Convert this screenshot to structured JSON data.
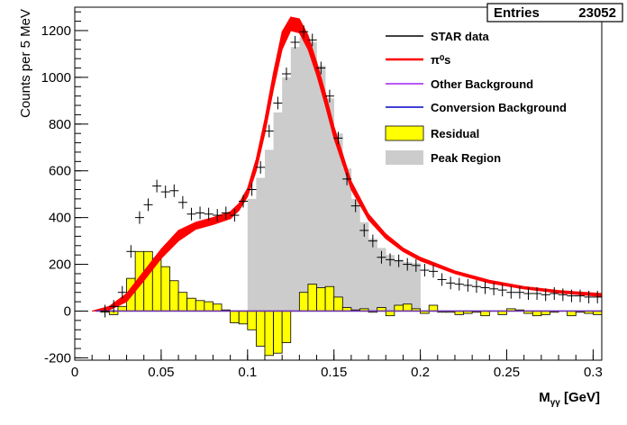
{
  "stats_box": {
    "label": "Entries",
    "value": "23052"
  },
  "chart_data": {
    "type": "line",
    "xlabel": "M",
    "xlabel_sub": "γγ",
    "xlabel_unit": " [GeV]",
    "ylabel": "Counts per 5 MeV",
    "xlim": [
      0,
      0.305
    ],
    "ylim": [
      -210,
      1300
    ],
    "x_ticks": [
      0,
      0.05,
      0.1,
      0.15,
      0.2,
      0.25,
      0.3
    ],
    "x_tick_labels": [
      "0",
      "0.05",
      "0.1",
      "0.15",
      "0.2",
      "0.25",
      "0.3"
    ],
    "y_ticks": [
      -200,
      0,
      200,
      400,
      600,
      800,
      1000,
      1200
    ],
    "y_tick_labels": [
      "-200",
      "0",
      "200",
      "400",
      "600",
      "800",
      "1000",
      "1200"
    ],
    "legend": [
      {
        "label": "STAR data",
        "style": "line",
        "color": "#000000"
      },
      {
        "label": "π⁰s",
        "style": "line",
        "color": "#ff0000"
      },
      {
        "label": "Other Background",
        "style": "line",
        "color": "#a020f0"
      },
      {
        "label": "Conversion Background",
        "style": "line",
        "color": "#0000cc"
      },
      {
        "label": "Residual",
        "style": "box",
        "color": "#ffff00"
      },
      {
        "label": "Peak Region",
        "style": "box",
        "color": "#cccccc"
      }
    ],
    "peak_region": {
      "bin_width": 0.005,
      "bins": [
        [
          0.1,
          480
        ],
        [
          0.105,
          570
        ],
        [
          0.11,
          690
        ],
        [
          0.115,
          850
        ],
        [
          0.12,
          1000
        ],
        [
          0.125,
          1130
        ],
        [
          0.13,
          1170
        ],
        [
          0.135,
          1150
        ],
        [
          0.14,
          1050
        ],
        [
          0.145,
          910
        ],
        [
          0.15,
          760
        ],
        [
          0.155,
          610
        ],
        [
          0.16,
          480
        ],
        [
          0.165,
          380
        ],
        [
          0.17,
          310
        ],
        [
          0.175,
          270
        ],
        [
          0.18,
          240
        ],
        [
          0.185,
          220
        ],
        [
          0.19,
          210
        ],
        [
          0.195,
          205
        ]
      ]
    },
    "residual": {
      "bin_width": 0.005,
      "bins": [
        [
          0.01,
          0
        ],
        [
          0.015,
          -5
        ],
        [
          0.02,
          -15
        ],
        [
          0.025,
          20
        ],
        [
          0.03,
          140
        ],
        [
          0.035,
          255
        ],
        [
          0.04,
          255
        ],
        [
          0.045,
          225
        ],
        [
          0.05,
          190
        ],
        [
          0.055,
          130
        ],
        [
          0.06,
          80
        ],
        [
          0.065,
          55
        ],
        [
          0.07,
          45
        ],
        [
          0.075,
          40
        ],
        [
          0.08,
          30
        ],
        [
          0.085,
          5
        ],
        [
          0.09,
          -50
        ],
        [
          0.095,
          -55
        ],
        [
          0.1,
          -80
        ],
        [
          0.105,
          -150
        ],
        [
          0.11,
          -190
        ],
        [
          0.115,
          -180
        ],
        [
          0.12,
          -135
        ],
        [
          0.125,
          0
        ],
        [
          0.13,
          80
        ],
        [
          0.135,
          115
        ],
        [
          0.14,
          100
        ],
        [
          0.145,
          105
        ],
        [
          0.15,
          60
        ],
        [
          0.155,
          15
        ],
        [
          0.16,
          5
        ],
        [
          0.165,
          10
        ],
        [
          0.17,
          -5
        ],
        [
          0.175,
          15
        ],
        [
          0.18,
          -20
        ],
        [
          0.185,
          25
        ],
        [
          0.19,
          30
        ],
        [
          0.195,
          10
        ],
        [
          0.2,
          -10
        ],
        [
          0.205,
          25
        ],
        [
          0.21,
          -5
        ],
        [
          0.215,
          -5
        ],
        [
          0.22,
          -15
        ],
        [
          0.225,
          -10
        ],
        [
          0.23,
          -5
        ],
        [
          0.235,
          -20
        ],
        [
          0.24,
          0
        ],
        [
          0.245,
          -15
        ],
        [
          0.25,
          10
        ],
        [
          0.255,
          5
        ],
        [
          0.26,
          -10
        ],
        [
          0.265,
          -20
        ],
        [
          0.27,
          -15
        ],
        [
          0.275,
          -5
        ],
        [
          0.28,
          0
        ],
        [
          0.285,
          -20
        ],
        [
          0.29,
          -5
        ],
        [
          0.295,
          -10
        ],
        [
          0.3,
          -15
        ]
      ]
    },
    "star_data": {
      "x": [
        0.0175,
        0.0225,
        0.0275,
        0.0325,
        0.0375,
        0.0425,
        0.0475,
        0.0525,
        0.0575,
        0.0625,
        0.0675,
        0.0725,
        0.0775,
        0.0825,
        0.0875,
        0.0925,
        0.0975,
        0.1025,
        0.1075,
        0.1125,
        0.1175,
        0.1225,
        0.1275,
        0.1325,
        0.1375,
        0.1425,
        0.1475,
        0.1525,
        0.1575,
        0.1625,
        0.1675,
        0.1725,
        0.1775,
        0.1825,
        0.1875,
        0.1925,
        0.1975,
        0.2025,
        0.2075,
        0.2125,
        0.2175,
        0.2225,
        0.2275,
        0.2325,
        0.2375,
        0.2425,
        0.2475,
        0.2525,
        0.2575,
        0.2625,
        0.2675,
        0.2725,
        0.2775,
        0.2825,
        0.2875,
        0.2925,
        0.2975,
        0.3025
      ],
      "y": [
        0,
        20,
        80,
        255,
        400,
        455,
        535,
        510,
        515,
        465,
        415,
        420,
        415,
        410,
        420,
        410,
        470,
        520,
        615,
        770,
        890,
        1015,
        1150,
        1195,
        1160,
        1040,
        920,
        740,
        565,
        450,
        345,
        300,
        230,
        220,
        215,
        200,
        195,
        175,
        170,
        135,
        120,
        115,
        110,
        105,
        100,
        95,
        90,
        80,
        80,
        75,
        75,
        70,
        75,
        70,
        65,
        65,
        60,
        60
      ]
    },
    "pi0_band": {
      "x": [
        0.01,
        0.02,
        0.03,
        0.04,
        0.05,
        0.06,
        0.07,
        0.08,
        0.09,
        0.095,
        0.1,
        0.105,
        0.11,
        0.115,
        0.12,
        0.125,
        0.13,
        0.135,
        0.14,
        0.145,
        0.15,
        0.16,
        0.17,
        0.18,
        0.19,
        0.2,
        0.22,
        0.24,
        0.26,
        0.28,
        0.305
      ],
      "low": [
        0,
        5,
        40,
        130,
        225,
        300,
        350,
        370,
        395,
        430,
        490,
        600,
        760,
        950,
        1120,
        1200,
        1190,
        1120,
        1010,
        880,
        740,
        520,
        390,
        310,
        255,
        215,
        160,
        120,
        95,
        78,
        62
      ],
      "high": [
        0,
        20,
        75,
        170,
        265,
        345,
        380,
        400,
        425,
        460,
        525,
        650,
        820,
        1020,
        1195,
        1258,
        1250,
        1180,
        1065,
        935,
        790,
        555,
        415,
        330,
        270,
        230,
        172,
        132,
        105,
        88,
        75
      ]
    }
  }
}
